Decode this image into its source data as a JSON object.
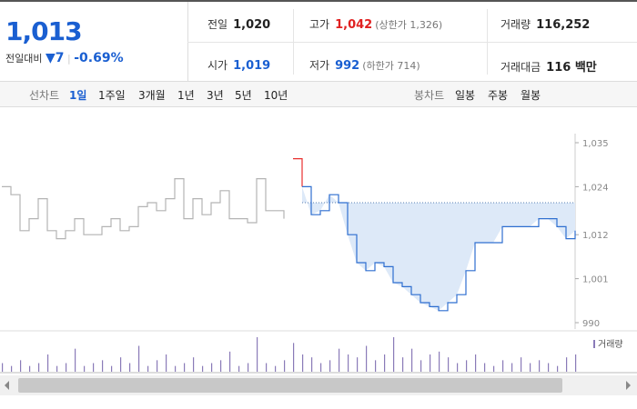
{
  "quote": {
    "price": "1,013",
    "change_label": "전일대비",
    "change": "7",
    "change_pct": "-0.69%"
  },
  "stats": [
    {
      "label": "전일",
      "value": "1,020"
    },
    {
      "label": "고가",
      "value": "1,042",
      "note": "(상한가 1,326)"
    },
    {
      "label": "거래량",
      "value": "116,252"
    },
    {
      "label": "시가",
      "value": "1,019"
    },
    {
      "label": "저가",
      "value": "992",
      "note": "(하한가 714)"
    },
    {
      "label": "거래대금",
      "value": "116 백만"
    }
  ],
  "tabs": {
    "line_label": "선차트",
    "line_items": [
      "1일",
      "1주일",
      "3개월",
      "1년",
      "3년",
      "5년",
      "10년"
    ],
    "candle_label": "봉차트",
    "candle_items": [
      "일봉",
      "주봉",
      "월봉"
    ]
  },
  "chart_data": {
    "type": "line",
    "ylim": [
      990,
      1035
    ],
    "yticks": [
      {
        "value": 1035,
        "label": "1,035"
      },
      {
        "value": 1024,
        "label": "1,024"
      },
      {
        "value": 1012,
        "label": "1,012"
      },
      {
        "value": 1001,
        "label": "1,001"
      },
      990
    ],
    "reference": 1020,
    "series": [
      {
        "color": "#b4b4b4",
        "values": [
          1024,
          1022,
          1013,
          1016,
          1021,
          1013,
          1011,
          1013,
          1016,
          1012,
          1012,
          1014,
          1016,
          1013,
          1014,
          1019,
          1020,
          1018,
          1021,
          1026,
          1016,
          1021,
          1017,
          1020,
          1023,
          1016,
          1016,
          1015,
          1026,
          1018,
          1018,
          1016,
          null,
          null,
          null,
          null,
          null,
          null,
          null,
          null,
          null,
          null,
          null,
          null,
          null,
          null,
          null,
          null,
          null,
          null,
          null,
          null,
          null,
          null,
          null,
          null,
          null,
          null,
          null,
          null,
          null,
          null,
          null,
          null
        ]
      },
      {
        "color": "#e8302f",
        "values": [
          null,
          null,
          null,
          null,
          null,
          null,
          null,
          null,
          null,
          null,
          null,
          null,
          null,
          null,
          null,
          null,
          null,
          null,
          null,
          null,
          null,
          null,
          null,
          null,
          null,
          null,
          null,
          null,
          null,
          null,
          null,
          null,
          1031,
          1024,
          null,
          null,
          null,
          null,
          null,
          null,
          null,
          null,
          null,
          null,
          null,
          null,
          null,
          null,
          null,
          null,
          null,
          null,
          null,
          null,
          null,
          null,
          null,
          null,
          null,
          null,
          null,
          null,
          null,
          null
        ]
      },
      {
        "color": "#2f6fd0",
        "values": [
          null,
          null,
          null,
          null,
          null,
          null,
          null,
          null,
          null,
          null,
          null,
          null,
          null,
          null,
          null,
          null,
          null,
          null,
          null,
          null,
          null,
          null,
          null,
          null,
          null,
          null,
          null,
          null,
          null,
          null,
          null,
          null,
          null,
          1024,
          1017,
          1018,
          1022,
          1020,
          1012,
          1005,
          1003,
          1005,
          1004,
          1000,
          999,
          997,
          995,
          994,
          993,
          995,
          997,
          1003,
          1010,
          1010,
          1010,
          1014,
          1014,
          1014,
          1014,
          1016,
          1016,
          1014,
          1011,
          1013
        ]
      }
    ],
    "volume": {
      "name": "거래량",
      "color": "#8a7bb8",
      "values": [
        3,
        2,
        4,
        2,
        3,
        6,
        2,
        3,
        8,
        2,
        3,
        4,
        2,
        5,
        3,
        9,
        2,
        4,
        6,
        2,
        3,
        5,
        2,
        3,
        4,
        7,
        2,
        3,
        12,
        3,
        2,
        4,
        10,
        6,
        5,
        3,
        4,
        8,
        6,
        5,
        9,
        4,
        6,
        12,
        5,
        8,
        4,
        6,
        7,
        5,
        3,
        4,
        6,
        3,
        2,
        4,
        3,
        5,
        3,
        4,
        3,
        2,
        5,
        6
      ]
    }
  }
}
